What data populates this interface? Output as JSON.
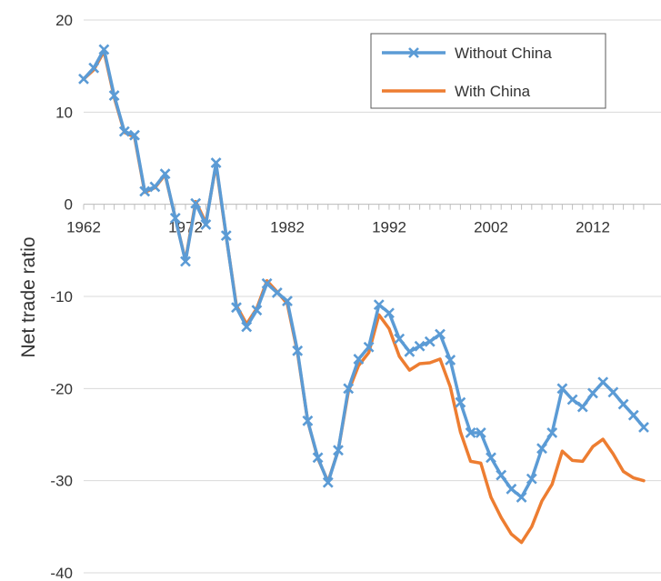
{
  "chart_data": {
    "type": "line",
    "title": "",
    "xlabel": "",
    "ylabel": "Net trade ratio",
    "ylim": [
      -40,
      20
    ],
    "yticks": [
      20,
      10,
      0,
      -10,
      -20,
      -30,
      -40
    ],
    "xlim": [
      1962,
      2017
    ],
    "xtick_labels": [
      "1962",
      "1972",
      "1982",
      "1992",
      "2002",
      "2012"
    ],
    "grid": "horizontal",
    "legend_position": "top-right",
    "x": [
      1962,
      1963,
      1964,
      1965,
      1966,
      1967,
      1968,
      1969,
      1970,
      1971,
      1972,
      1973,
      1974,
      1975,
      1976,
      1977,
      1978,
      1979,
      1980,
      1981,
      1982,
      1983,
      1984,
      1985,
      1986,
      1987,
      1988,
      1989,
      1990,
      1991,
      1992,
      1993,
      1994,
      1995,
      1996,
      1997,
      1998,
      1999,
      2000,
      2001,
      2002,
      2003,
      2004,
      2005,
      2006,
      2007,
      2008,
      2009,
      2010,
      2011,
      2012,
      2013,
      2014,
      2015,
      2016,
      2017
    ],
    "series": [
      {
        "name": "Without China",
        "color": "#5B9BD5",
        "marker": "x",
        "values": [
          13.6,
          14.8,
          16.8,
          11.8,
          7.9,
          7.5,
          1.4,
          1.9,
          3.3,
          -1.5,
          -6.2,
          0.1,
          -2.2,
          4.5,
          -3.4,
          -11.2,
          -13.3,
          -11.5,
          -8.6,
          -9.6,
          -10.5,
          -15.9,
          -23.5,
          -27.5,
          -30.2,
          -26.7,
          -20.0,
          -16.8,
          -15.5,
          -10.9,
          -11.8,
          -14.6,
          -16.0,
          -15.4,
          -14.9,
          -14.1,
          -16.9,
          -21.5,
          -24.8,
          -24.8,
          -27.5,
          -29.4,
          -30.9,
          -31.8,
          -29.8,
          -26.5,
          -24.8,
          -20.0,
          -21.2,
          -22.0,
          -20.5,
          -19.3,
          -20.4,
          -21.7,
          -22.9,
          -24.2
        ]
      },
      {
        "name": "With China",
        "color": "#ED7D31",
        "values": [
          13.6,
          14.6,
          16.6,
          11.6,
          7.8,
          7.3,
          1.3,
          1.8,
          3.2,
          -1.5,
          -6.1,
          0.3,
          -2.0,
          4.3,
          -3.5,
          -11.0,
          -13.0,
          -11.3,
          -8.3,
          -9.5,
          -10.8,
          -16.1,
          -23.5,
          -27.6,
          -30.1,
          -26.7,
          -20.3,
          -17.5,
          -16.1,
          -12.0,
          -13.5,
          -16.5,
          -18.0,
          -17.3,
          -17.2,
          -16.8,
          -19.8,
          -24.7,
          -27.9,
          -28.1,
          -31.8,
          -34.0,
          -35.8,
          -36.7,
          -35.0,
          -32.2,
          -30.4,
          -26.8,
          -27.8,
          -27.9,
          -26.3,
          -25.5,
          -27.1,
          -29.0,
          -29.7,
          -30.0
        ]
      }
    ]
  }
}
